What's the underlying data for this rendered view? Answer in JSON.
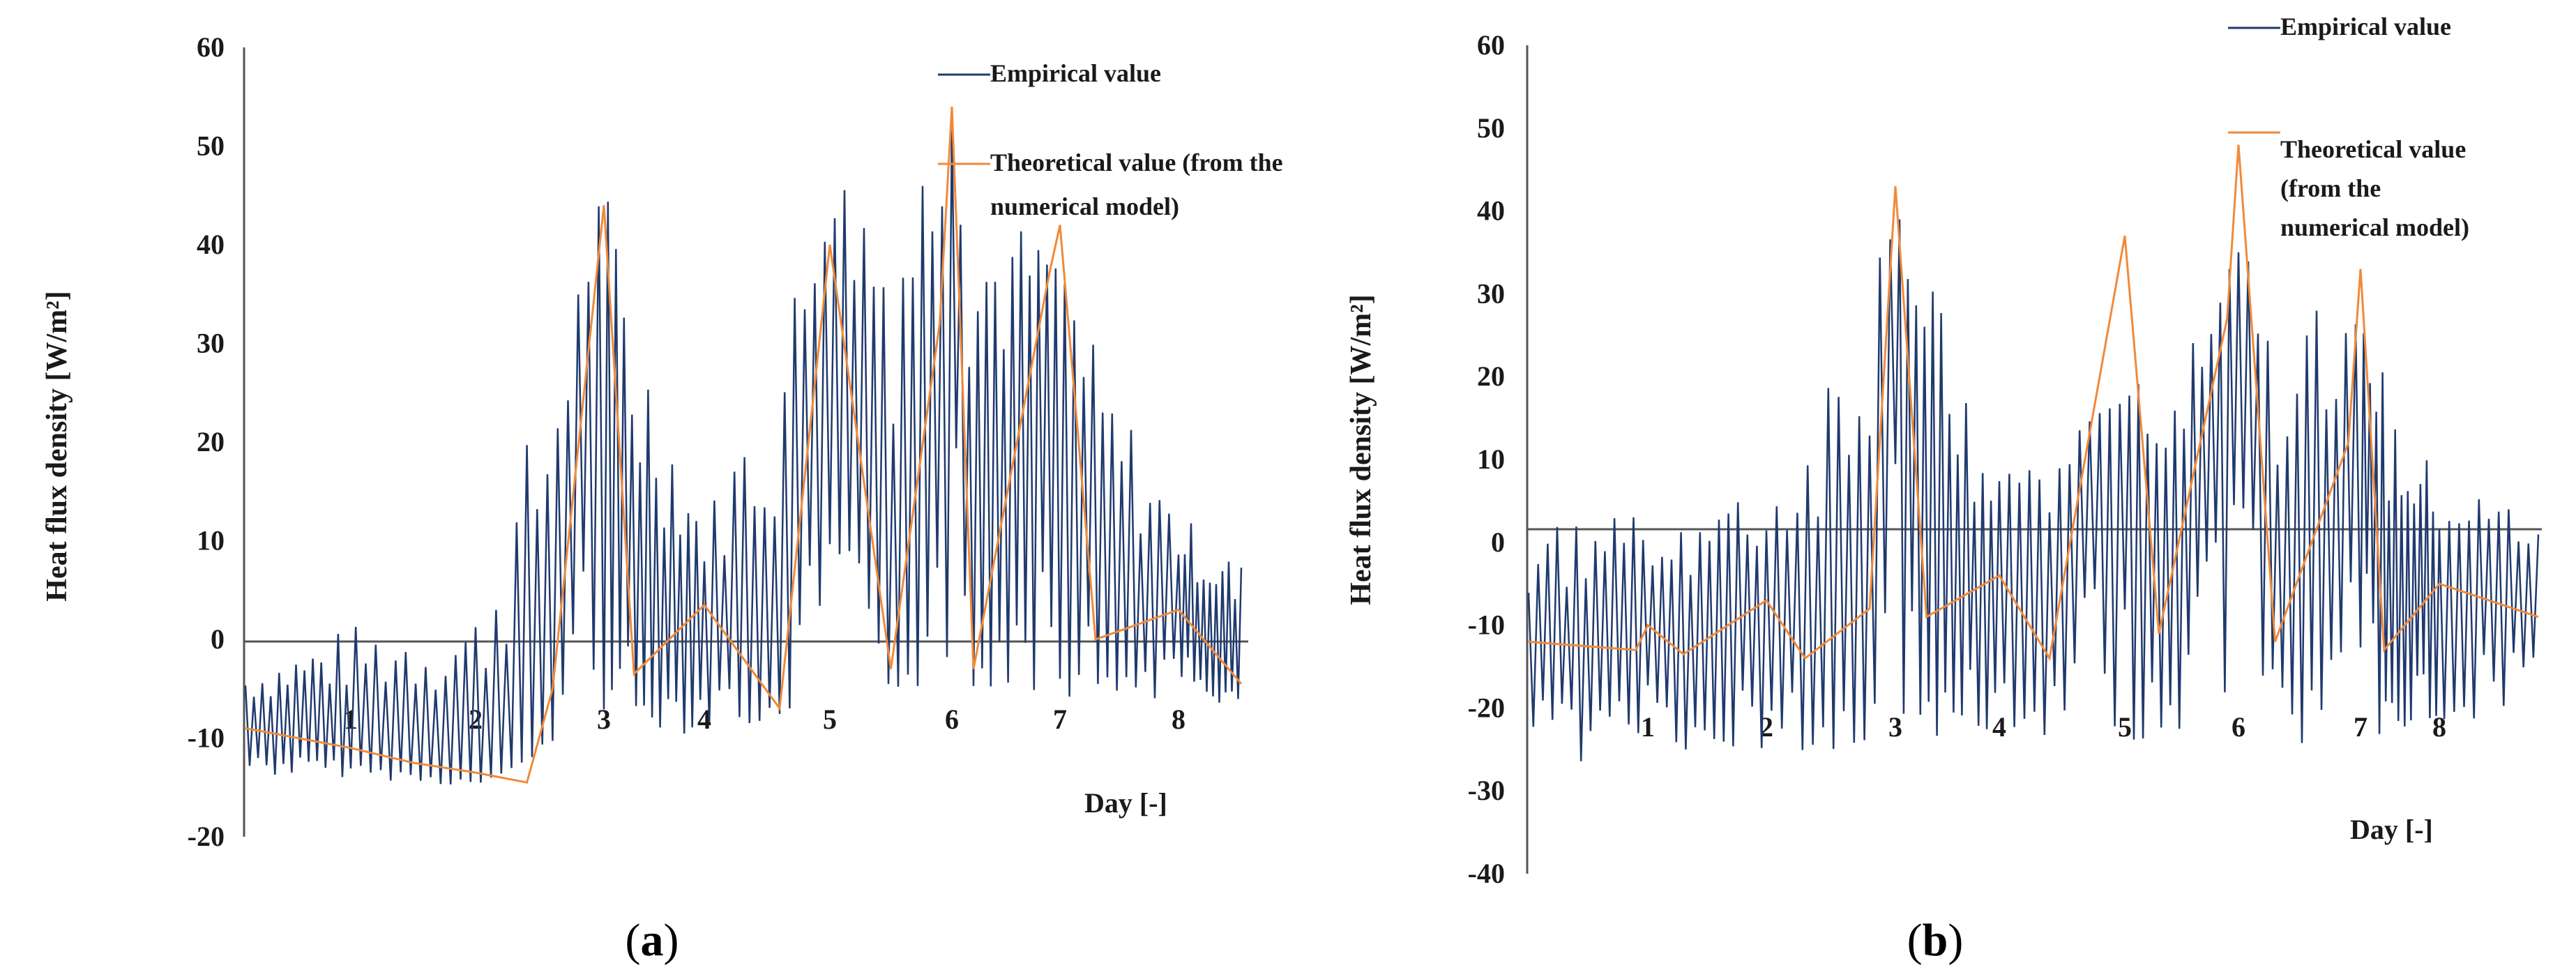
{
  "colors": {
    "empirical": "#1f3a6e",
    "theoretical": "#f08a3a",
    "axis": "#555555",
    "text": "#1a1a1a"
  },
  "chart_data": [
    {
      "type": "line",
      "caption": "a",
      "ylabel": "Heat flux density  [W/m²]",
      "xlabel": "Day [-]",
      "ylim": [
        -20,
        60
      ],
      "yticks": [
        -20,
        -10,
        0,
        10,
        20,
        30,
        40,
        50,
        60
      ],
      "day_labels": [
        "1",
        "2",
        "3",
        "4",
        "5",
        "6",
        "7",
        "8"
      ],
      "grid": false,
      "legend": "top-right",
      "series": [
        {
          "name": "Empirical value",
          "peaks": [
            [
              0,
              -3
            ],
            [
              1,
              1.5
            ],
            [
              2,
              3.5
            ],
            [
              3,
              46
            ],
            [
              4,
              12
            ],
            [
              5,
              47
            ],
            [
              6,
              52
            ],
            [
              7,
              37
            ],
            [
              8,
              13
            ],
            [
              8.8,
              8
            ]
          ],
          "troughs": [
            [
              0,
              -14
            ],
            [
              1,
              -14
            ],
            [
              2,
              -15
            ],
            [
              3,
              -8
            ],
            [
              4,
              -10
            ],
            [
              5,
              -7
            ],
            [
              6,
              -5
            ],
            [
              7,
              -6
            ],
            [
              8,
              -6
            ],
            [
              8.8,
              -7
            ]
          ]
        },
        {
          "name": "Theoretical value (from the numerical model)",
          "points": [
            [
              0,
              -9
            ],
            [
              1,
              -11
            ],
            [
              1.5,
              -12.5
            ],
            [
              2,
              -13.5
            ],
            [
              2.4,
              -14.5
            ],
            [
              2.6,
              -5
            ],
            [
              3,
              44
            ],
            [
              3.3,
              -3.5
            ],
            [
              4,
              3.5
            ],
            [
              4.6,
              -7
            ],
            [
              5,
              40
            ],
            [
              5.5,
              -3
            ],
            [
              5.9,
              32
            ],
            [
              6,
              54
            ],
            [
              6.2,
              -3
            ],
            [
              6.9,
              37
            ],
            [
              7,
              42
            ],
            [
              7.3,
              0
            ],
            [
              8,
              3
            ],
            [
              8.8,
              -4.5
            ]
          ]
        }
      ]
    },
    {
      "type": "line",
      "caption": "b",
      "ylabel": "Heat flux density  [W/m²]",
      "xlabel": "Day [-]",
      "ylim": [
        -40,
        60
      ],
      "yticks": [
        -40,
        -30,
        -20,
        -10,
        0,
        10,
        20,
        30,
        40,
        50,
        60
      ],
      "day_labels": [
        "1",
        "2",
        "3",
        "4",
        "5",
        "6",
        "7",
        "8"
      ],
      "grid": false,
      "legend": "top-right",
      "series": [
        {
          "name": "Empirical value",
          "peaks": [
            [
              0,
              1
            ],
            [
              1,
              6
            ],
            [
              2,
              5
            ],
            [
              3,
              42
            ],
            [
              4,
              10
            ],
            [
              5,
              17
            ],
            [
              6,
              35
            ],
            [
              7,
              26
            ],
            [
              8,
              7
            ],
            [
              8.8,
              5
            ]
          ],
          "troughs": [
            [
              0,
              -27
            ],
            [
              1,
              -26
            ],
            [
              2,
              -26
            ],
            [
              3,
              -24
            ],
            [
              4,
              -24
            ],
            [
              5,
              -24
            ],
            [
              6,
              -24
            ],
            [
              7,
              -25
            ],
            [
              8,
              -25
            ],
            [
              8.8,
              -18
            ]
          ]
        },
        {
          "name": "Theoretical value (from the numerical model)",
          "points": [
            [
              0,
              -12
            ],
            [
              0.9,
              -13
            ],
            [
              1,
              -10
            ],
            [
              1.3,
              -13.5
            ],
            [
              2,
              -7
            ],
            [
              2.3,
              -14
            ],
            [
              2.8,
              -8
            ],
            [
              3,
              43
            ],
            [
              3.3,
              -9
            ],
            [
              4,
              -4
            ],
            [
              4.4,
              -14
            ],
            [
              5,
              37
            ],
            [
              5.3,
              -11
            ],
            [
              5.9,
              27
            ],
            [
              6,
              48
            ],
            [
              6.3,
              -12
            ],
            [
              6.9,
              12
            ],
            [
              7,
              33
            ],
            [
              7.3,
              -13
            ],
            [
              8,
              -5
            ],
            [
              8.8,
              -9
            ]
          ]
        }
      ]
    }
  ]
}
